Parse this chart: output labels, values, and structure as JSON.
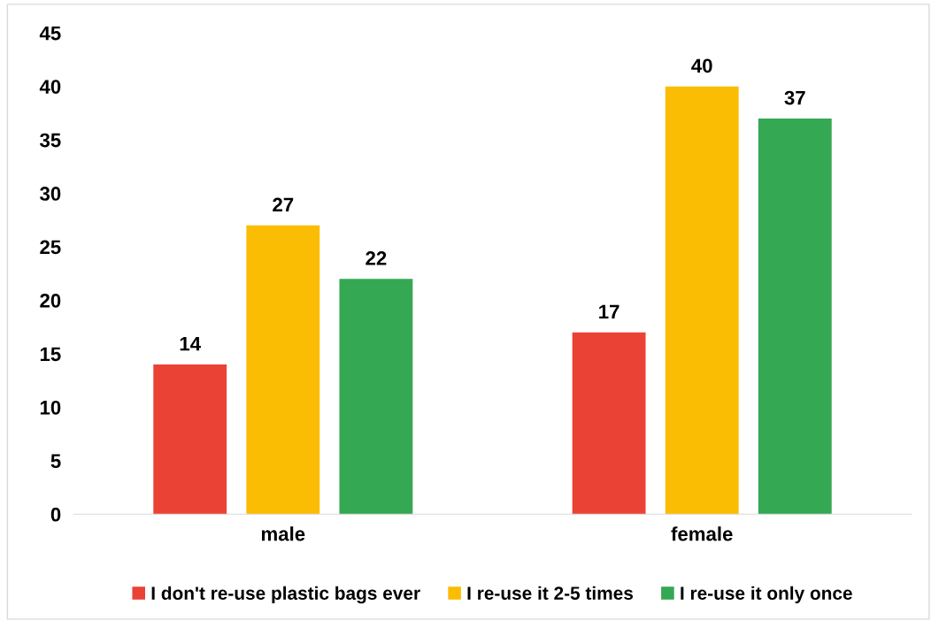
{
  "chart_data": {
    "type": "bar",
    "categories": [
      "male",
      "female"
    ],
    "series": [
      {
        "name": "I don't re-use plastic bags ever",
        "color": "#ea4335",
        "values": [
          14,
          17
        ]
      },
      {
        "name": "I re-use it 2-5 times",
        "color": "#fbbc04",
        "values": [
          27,
          40
        ]
      },
      {
        "name": "I re-use it only once",
        "color": "#34a853",
        "values": [
          22,
          37
        ]
      }
    ],
    "ylim": [
      0,
      45
    ],
    "yticks": [
      0,
      5,
      10,
      15,
      20,
      25,
      30,
      35,
      40,
      45
    ],
    "data_labels": true,
    "grid": false,
    "legend": "bottom"
  }
}
